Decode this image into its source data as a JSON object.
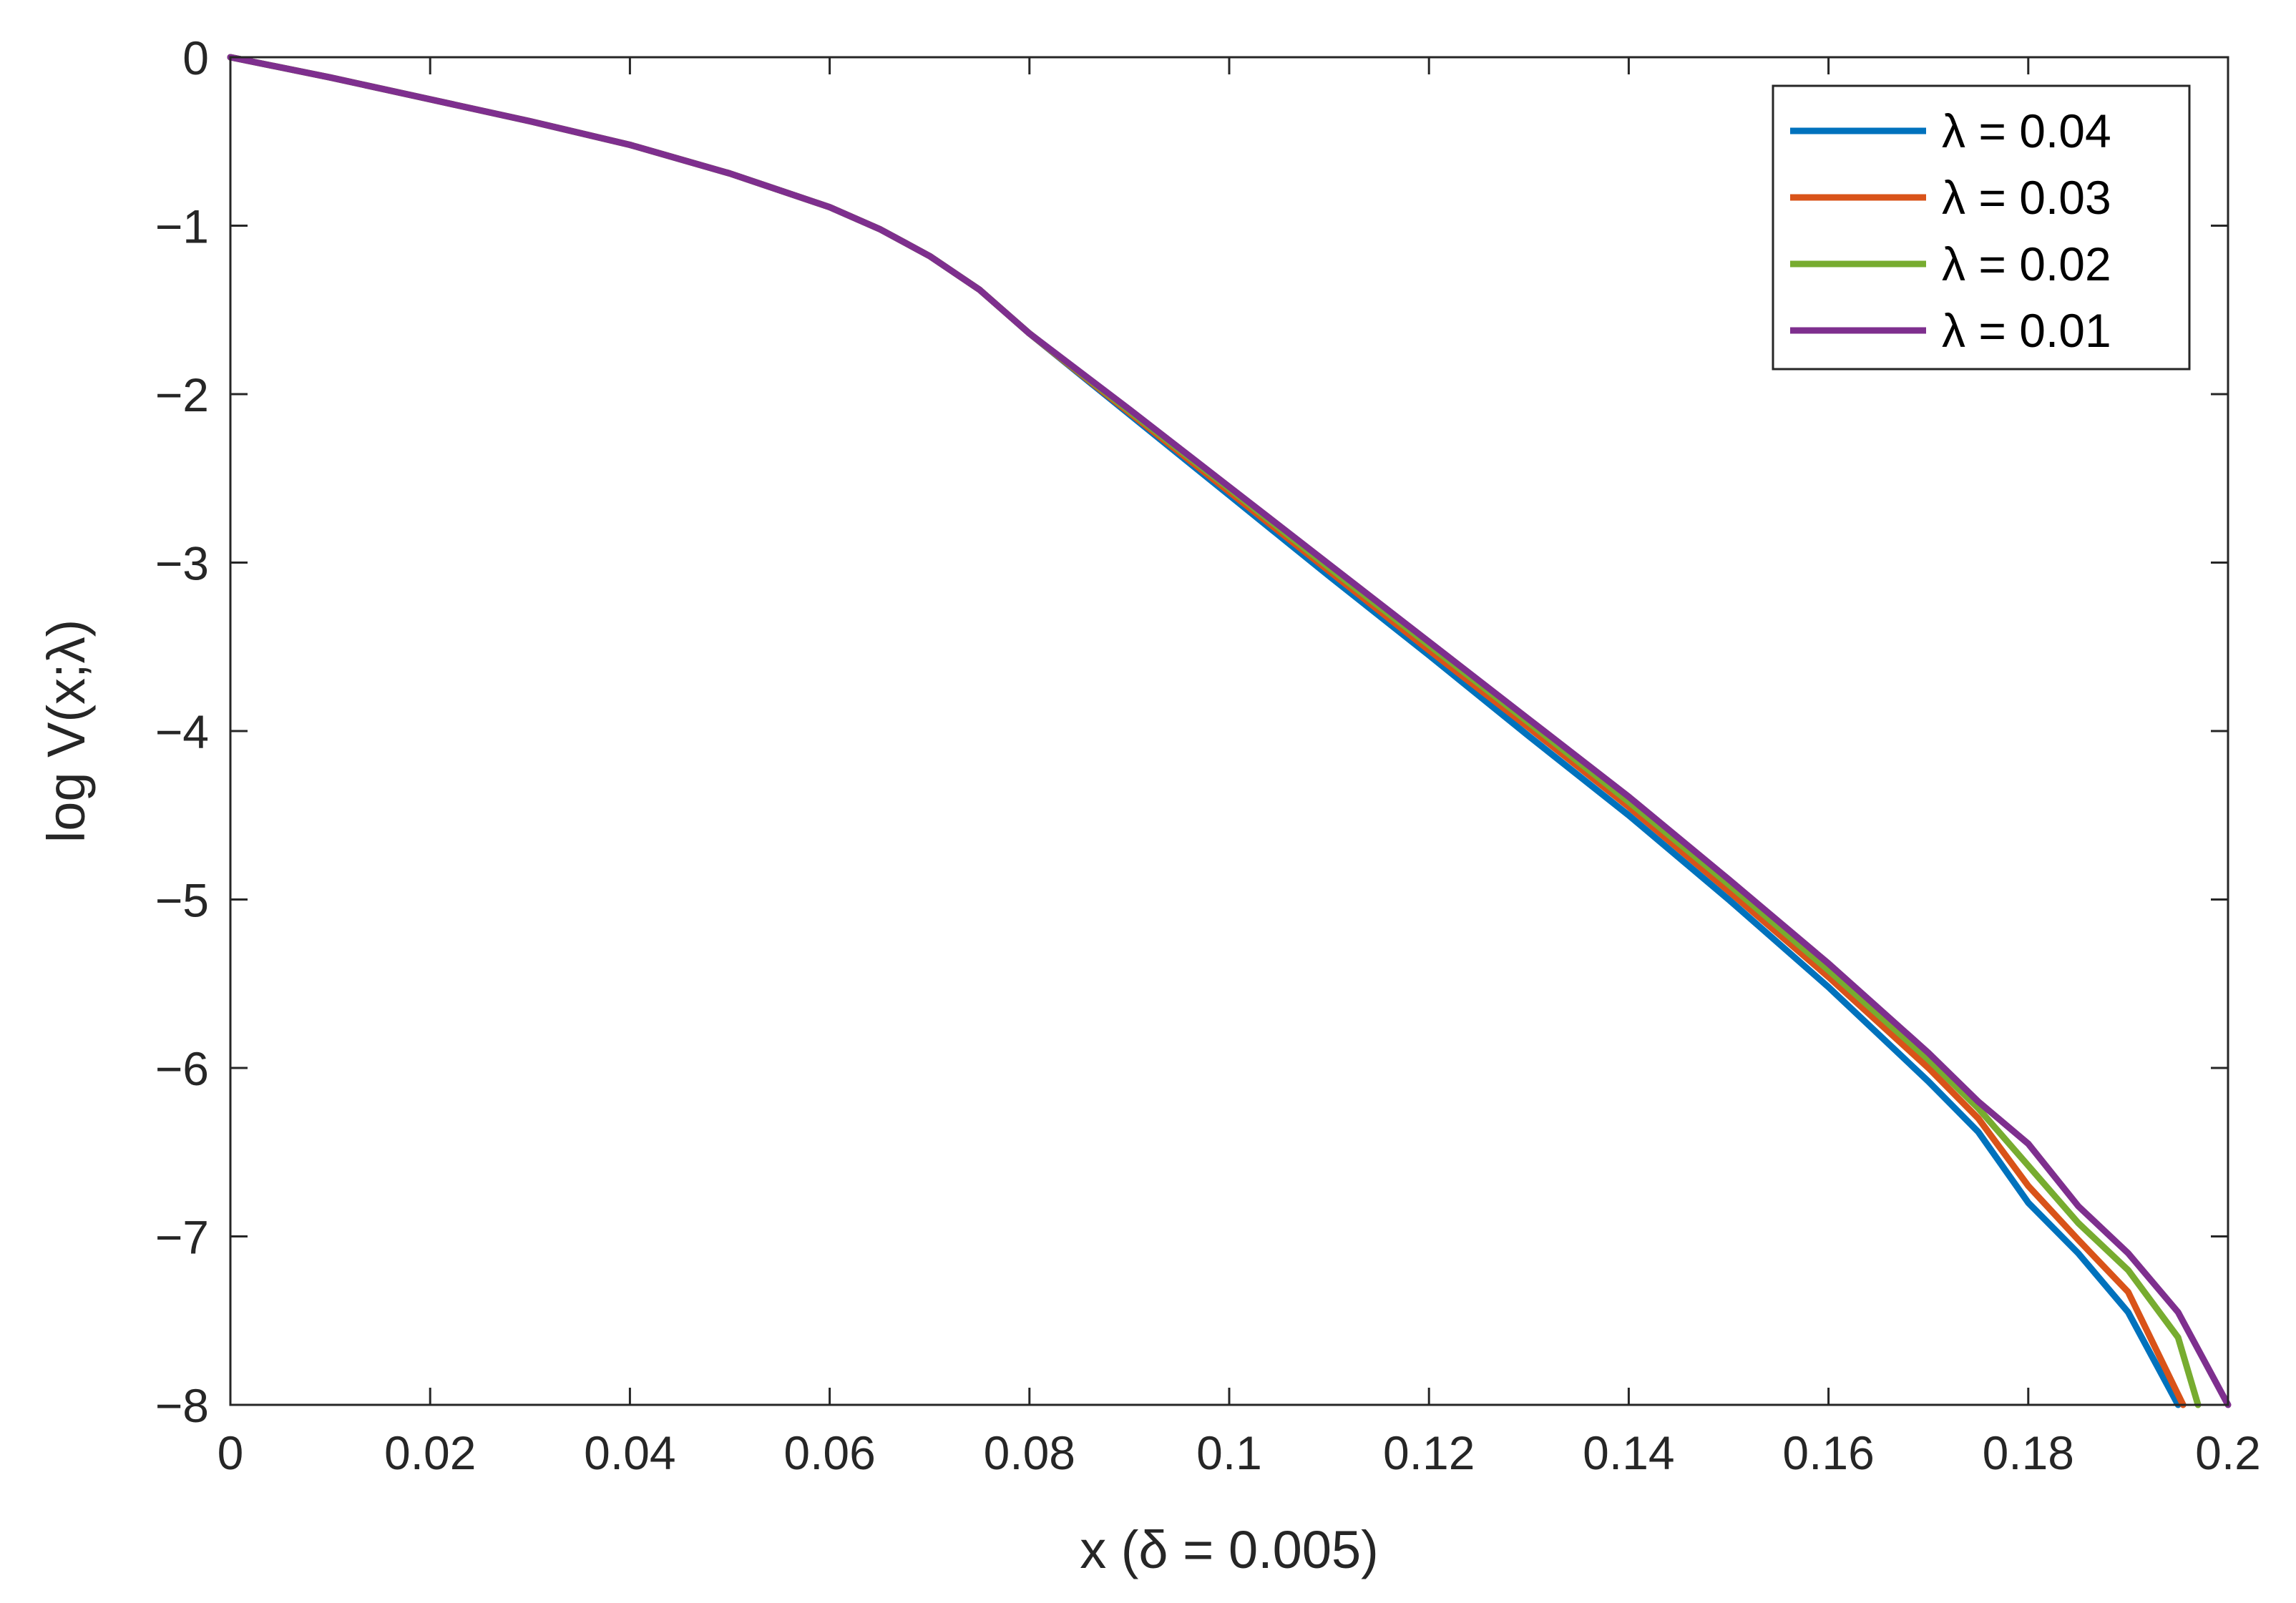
{
  "chart_data": {
    "type": "line",
    "xlabel": "x (δ = 0.005)",
    "ylabel": "log V(x;λ)",
    "xlim": [
      0,
      0.2
    ],
    "ylim": [
      -8,
      0
    ],
    "xticks": [
      0,
      0.02,
      0.04,
      0.06,
      0.08,
      0.1,
      0.12,
      0.14,
      0.16,
      0.18,
      0.2
    ],
    "xtick_labels": [
      "0",
      "0.02",
      "0.04",
      "0.06",
      "0.08",
      "0.1",
      "0.12",
      "0.14",
      "0.16",
      "0.18",
      "0.2"
    ],
    "yticks": [
      0,
      -1,
      -2,
      -3,
      -4,
      -5,
      -6,
      -7,
      -8
    ],
    "ytick_labels": [
      "0",
      "−1",
      "−2",
      "−3",
      "−4",
      "−5",
      "−6",
      "−7",
      "−8"
    ],
    "grid": false,
    "legend_position": "top-right",
    "series": [
      {
        "name": "λ = 0.04",
        "color": "#0072BD",
        "points": [
          [
            0,
            0
          ],
          [
            0.01,
            -0.12
          ],
          [
            0.02,
            -0.25
          ],
          [
            0.03,
            -0.38
          ],
          [
            0.04,
            -0.52
          ],
          [
            0.05,
            -0.69
          ],
          [
            0.06,
            -0.89
          ],
          [
            0.065,
            -1.02
          ],
          [
            0.07,
            -1.18
          ],
          [
            0.075,
            -1.38
          ],
          [
            0.08,
            -1.64
          ],
          [
            0.09,
            -2.12
          ],
          [
            0.1,
            -2.6
          ],
          [
            0.11,
            -3.08
          ],
          [
            0.12,
            -3.55
          ],
          [
            0.13,
            -4.03
          ],
          [
            0.14,
            -4.5
          ],
          [
            0.15,
            -5.0
          ],
          [
            0.16,
            -5.52
          ],
          [
            0.17,
            -6.08
          ],
          [
            0.175,
            -6.38
          ],
          [
            0.18,
            -6.8
          ],
          [
            0.185,
            -7.1
          ],
          [
            0.19,
            -7.45
          ],
          [
            0.195,
            -8.0
          ]
        ]
      },
      {
        "name": "λ = 0.03",
        "color": "#D95319",
        "points": [
          [
            0,
            0
          ],
          [
            0.01,
            -0.12
          ],
          [
            0.02,
            -0.25
          ],
          [
            0.03,
            -0.38
          ],
          [
            0.04,
            -0.52
          ],
          [
            0.05,
            -0.69
          ],
          [
            0.06,
            -0.89
          ],
          [
            0.065,
            -1.02
          ],
          [
            0.07,
            -1.18
          ],
          [
            0.075,
            -1.38
          ],
          [
            0.08,
            -1.64
          ],
          [
            0.09,
            -2.11
          ],
          [
            0.1,
            -2.58
          ],
          [
            0.11,
            -3.05
          ],
          [
            0.12,
            -3.52
          ],
          [
            0.13,
            -3.98
          ],
          [
            0.14,
            -4.45
          ],
          [
            0.15,
            -4.95
          ],
          [
            0.16,
            -5.46
          ],
          [
            0.17,
            -6.0
          ],
          [
            0.175,
            -6.3
          ],
          [
            0.18,
            -6.7
          ],
          [
            0.185,
            -7.02
          ],
          [
            0.19,
            -7.33
          ],
          [
            0.1955,
            -8.0
          ]
        ]
      },
      {
        "name": "λ = 0.02",
        "color": "#77AC30",
        "points": [
          [
            0,
            0
          ],
          [
            0.01,
            -0.12
          ],
          [
            0.02,
            -0.25
          ],
          [
            0.03,
            -0.38
          ],
          [
            0.04,
            -0.52
          ],
          [
            0.05,
            -0.69
          ],
          [
            0.06,
            -0.89
          ],
          [
            0.065,
            -1.02
          ],
          [
            0.07,
            -1.18
          ],
          [
            0.075,
            -1.38
          ],
          [
            0.08,
            -1.64
          ],
          [
            0.09,
            -2.1
          ],
          [
            0.1,
            -2.56
          ],
          [
            0.11,
            -3.03
          ],
          [
            0.12,
            -3.49
          ],
          [
            0.13,
            -3.95
          ],
          [
            0.14,
            -4.42
          ],
          [
            0.15,
            -4.91
          ],
          [
            0.16,
            -5.42
          ],
          [
            0.17,
            -5.95
          ],
          [
            0.175,
            -6.24
          ],
          [
            0.18,
            -6.58
          ],
          [
            0.185,
            -6.92
          ],
          [
            0.19,
            -7.2
          ],
          [
            0.195,
            -7.6
          ],
          [
            0.197,
            -8.0
          ]
        ]
      },
      {
        "name": "λ = 0.01",
        "color": "#7E2F8E",
        "points": [
          [
            0,
            0
          ],
          [
            0.01,
            -0.12
          ],
          [
            0.02,
            -0.25
          ],
          [
            0.03,
            -0.38
          ],
          [
            0.04,
            -0.52
          ],
          [
            0.05,
            -0.69
          ],
          [
            0.06,
            -0.89
          ],
          [
            0.065,
            -1.02
          ],
          [
            0.07,
            -1.18
          ],
          [
            0.075,
            -1.38
          ],
          [
            0.08,
            -1.64
          ],
          [
            0.09,
            -2.09
          ],
          [
            0.1,
            -2.55
          ],
          [
            0.11,
            -3.01
          ],
          [
            0.12,
            -3.47
          ],
          [
            0.13,
            -3.93
          ],
          [
            0.14,
            -4.39
          ],
          [
            0.15,
            -4.88
          ],
          [
            0.16,
            -5.38
          ],
          [
            0.17,
            -5.91
          ],
          [
            0.175,
            -6.2
          ],
          [
            0.18,
            -6.45
          ],
          [
            0.185,
            -6.82
          ],
          [
            0.19,
            -7.1
          ],
          [
            0.195,
            -7.45
          ],
          [
            0.2,
            -8.0
          ]
        ]
      }
    ]
  }
}
